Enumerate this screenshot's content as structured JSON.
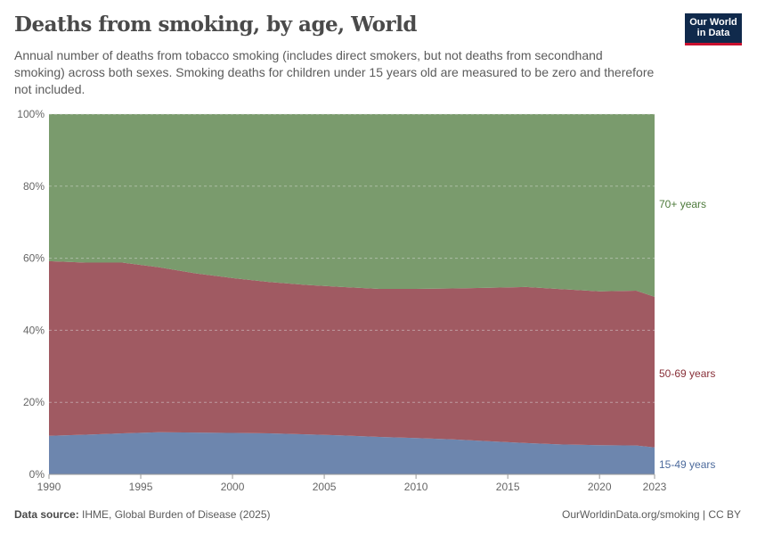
{
  "header": {
    "title": "Deaths from smoking, by age, World",
    "subtitle": "Annual number of deaths from tobacco smoking (includes direct smokers, but not deaths from secondhand smoking) across both sexes. Smoking deaths for children under 15 years old are measured to be zero and therefore not included.",
    "logo": "Our World in Data"
  },
  "footer": {
    "source_label": "Data source:",
    "source": "IHME, Global Burden of Disease (2025)",
    "link": "OurWorldinData.org/smoking | CC BY"
  },
  "chart_data": {
    "type": "area",
    "stacked": "percent",
    "x": [
      1990,
      1992,
      1994,
      1996,
      1998,
      2000,
      2002,
      2004,
      2006,
      2008,
      2010,
      2012,
      2014,
      2016,
      2018,
      2020,
      2022,
      2023
    ],
    "series": [
      {
        "name": "15-49 years",
        "color": "#6d86ae",
        "values": [
          10.7,
          11.0,
          11.4,
          11.7,
          11.6,
          11.5,
          11.4,
          11.1,
          10.8,
          10.4,
          10.1,
          9.7,
          9.2,
          8.7,
          8.3,
          8.1,
          8.0,
          7.5
        ]
      },
      {
        "name": "50-69 years",
        "color": "#a05a62",
        "values": [
          48.5,
          47.8,
          47.4,
          45.8,
          44.2,
          43.0,
          42.0,
          41.5,
          41.2,
          41.1,
          41.4,
          41.9,
          42.6,
          43.3,
          43.1,
          42.7,
          43.0,
          41.8
        ]
      },
      {
        "name": "70+ years",
        "color": "#7a9b6d",
        "values": [
          40.8,
          41.2,
          41.2,
          42.5,
          44.2,
          45.5,
          46.6,
          47.4,
          48.0,
          48.5,
          48.5,
          48.4,
          48.2,
          48.0,
          48.6,
          49.2,
          49.0,
          50.7
        ]
      }
    ],
    "yticks": [
      "0%",
      "20%",
      "40%",
      "60%",
      "80%",
      "100%"
    ],
    "xticks": [
      "1990",
      "1995",
      "2000",
      "2005",
      "2010",
      "2015",
      "2020",
      "2023"
    ],
    "ylim": [
      0,
      100
    ],
    "grid": "horizontal dashed",
    "legend": "right labels"
  }
}
